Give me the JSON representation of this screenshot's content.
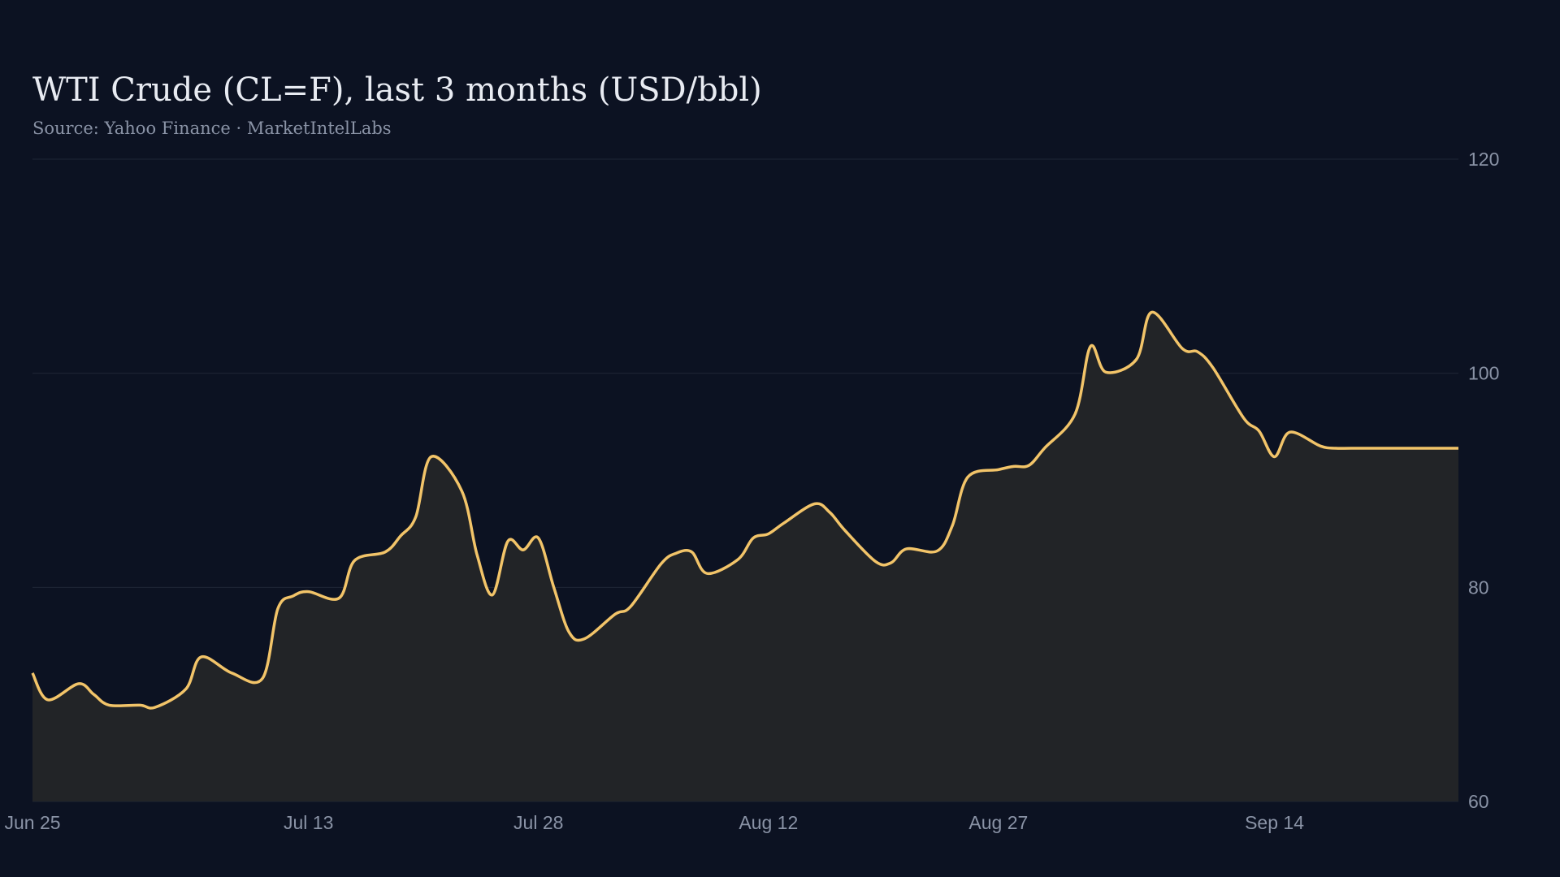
{
  "colors": {
    "background": "#0c1222",
    "line": "#f2c469",
    "area": "#222427",
    "grid": "#1e2636",
    "text_muted": "#8a93a6",
    "title": "#e8ebf2"
  },
  "chart_data": {
    "type": "area",
    "title": "WTI Crude (CL=F), last 3 months (USD/bbl)",
    "subtitle": "Source: Yahoo Finance · MarketIntelLabs",
    "xlabel": "",
    "ylabel": "",
    "ylim": [
      60,
      120
    ],
    "xlim": [
      "2025-06-25",
      "2025-09-26"
    ],
    "y_ticks": [
      60,
      80,
      100,
      120
    ],
    "y_axis_position": "right",
    "x_ticks": [
      {
        "date": "2025-06-25",
        "label": "Jun 25"
      },
      {
        "date": "2025-07-13",
        "label": "Jul 13"
      },
      {
        "date": "2025-07-28",
        "label": "Jul 28"
      },
      {
        "date": "2025-08-12",
        "label": "Aug 12"
      },
      {
        "date": "2025-08-27",
        "label": "Aug 27"
      },
      {
        "date": "2025-09-14",
        "label": "Sep 14"
      }
    ],
    "grid": true,
    "legend": "none",
    "series": [
      {
        "x": [
          "2025-06-25",
          "2025-06-26",
          "2025-06-28",
          "2025-06-29",
          "2025-06-30",
          "2025-07-02",
          "2025-07-03",
          "2025-07-05",
          "2025-07-06",
          "2025-07-08",
          "2025-07-10",
          "2025-07-11",
          "2025-07-12",
          "2025-07-13",
          "2025-07-15",
          "2025-07-16",
          "2025-07-18",
          "2025-07-19",
          "2025-07-20",
          "2025-07-21",
          "2025-07-23",
          "2025-07-24",
          "2025-07-25",
          "2025-07-26",
          "2025-07-27",
          "2025-07-28",
          "2025-07-29",
          "2025-07-30",
          "2025-07-31",
          "2025-08-02",
          "2025-08-03",
          "2025-08-05",
          "2025-08-06",
          "2025-08-07",
          "2025-08-08",
          "2025-08-10",
          "2025-08-11",
          "2025-08-12",
          "2025-08-13",
          "2025-08-15",
          "2025-08-16",
          "2025-08-17",
          "2025-08-19",
          "2025-08-20",
          "2025-08-21",
          "2025-08-23",
          "2025-08-24",
          "2025-08-25",
          "2025-08-27",
          "2025-08-28",
          "2025-08-29",
          "2025-08-30",
          "2025-09-01",
          "2025-09-02",
          "2025-09-03",
          "2025-09-05",
          "2025-09-06",
          "2025-09-08",
          "2025-09-09",
          "2025-09-10",
          "2025-09-12",
          "2025-09-13",
          "2025-09-14",
          "2025-09-15",
          "2025-09-17",
          "2025-09-18",
          "2025-09-19",
          "2025-09-21",
          "2025-09-22",
          "2025-09-23",
          "2025-09-25",
          "2025-09-26"
        ],
        "values": [
          72,
          69.5,
          71,
          70,
          69,
          69,
          68.8,
          70.5,
          73.5,
          72,
          71.5,
          78,
          79.2,
          79.6,
          79,
          82.5,
          83.3,
          84.8,
          86.6,
          92.2,
          89,
          83,
          79.3,
          84.3,
          83.5,
          84.6,
          80,
          75.8,
          75.2,
          77.5,
          78.2,
          82.2,
          83.2,
          83.3,
          81.3,
          82.6,
          84.6,
          85,
          86,
          87.8,
          87,
          85.3,
          82.4,
          82.3,
          83.6,
          83.4,
          85.8,
          90.3,
          91,
          91.3,
          91.4,
          93,
          96.2,
          102.5,
          100.1,
          101.3,
          105.7,
          102.3,
          102,
          100.5,
          95.8,
          94.6,
          92.2,
          94.5,
          93.2,
          93,
          93,
          93,
          93,
          93,
          93,
          93
        ]
      }
    ]
  }
}
